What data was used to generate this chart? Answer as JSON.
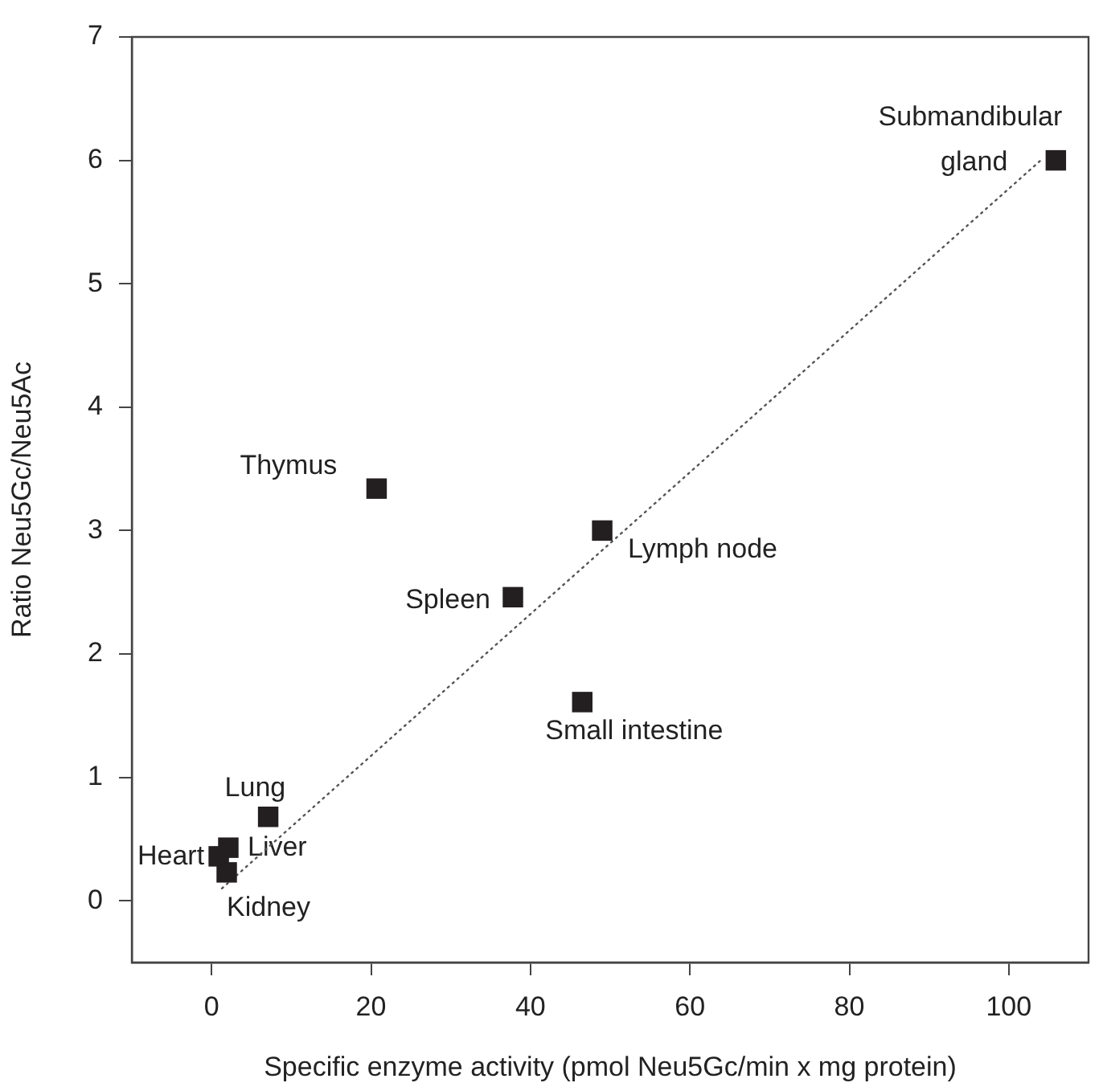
{
  "chart_data": {
    "type": "scatter",
    "xlabel": "Specific enzyme activity (pmol Neu5Gc/min x mg protein)",
    "ylabel": "Ratio Neu5Gc/Neu5Ac",
    "xlim": [
      -10,
      110
    ],
    "xticks": [
      0,
      20,
      40,
      60,
      80,
      100
    ],
    "ylim": [
      -0.5,
      7
    ],
    "yticks": [
      0,
      1,
      2,
      3,
      4,
      5,
      6,
      7
    ],
    "grid": false,
    "legend": false,
    "marker": "square",
    "series": [
      {
        "color": "#231f20",
        "x": [
          105.9,
          20.7,
          49.0,
          37.8,
          46.5,
          7.1,
          2.1,
          0.9,
          1.9
        ],
        "values": [
          6.0,
          3.34,
          3.0,
          2.46,
          1.61,
          0.68,
          0.43,
          0.36,
          0.23
        ]
      },
      {
        "type": "line",
        "color": "#555555",
        "line_style": "dotted",
        "marker": "none",
        "x": [
          1.3,
          104
        ],
        "values": [
          0.1,
          6.0
        ]
      }
    ],
    "annotations": [
      {
        "text": "Submandibular gland",
        "x": 105.9,
        "y": 6.0
      },
      {
        "text": "Thymus",
        "x": 20.7,
        "y": 3.34
      },
      {
        "text": "Lymph node",
        "x": 49.0,
        "y": 3.0
      },
      {
        "text": "Spleen",
        "x": 37.8,
        "y": 2.46
      },
      {
        "text": "Small intestine",
        "x": 46.5,
        "y": 1.61
      },
      {
        "text": "Lung",
        "x": 7.1,
        "y": 0.68
      },
      {
        "text": "Liver",
        "x": 2.1,
        "y": 0.43
      },
      {
        "text": "Heart",
        "x": 0.9,
        "y": 0.36
      },
      {
        "text": "Kidney",
        "x": 1.9,
        "y": 0.23
      }
    ]
  }
}
